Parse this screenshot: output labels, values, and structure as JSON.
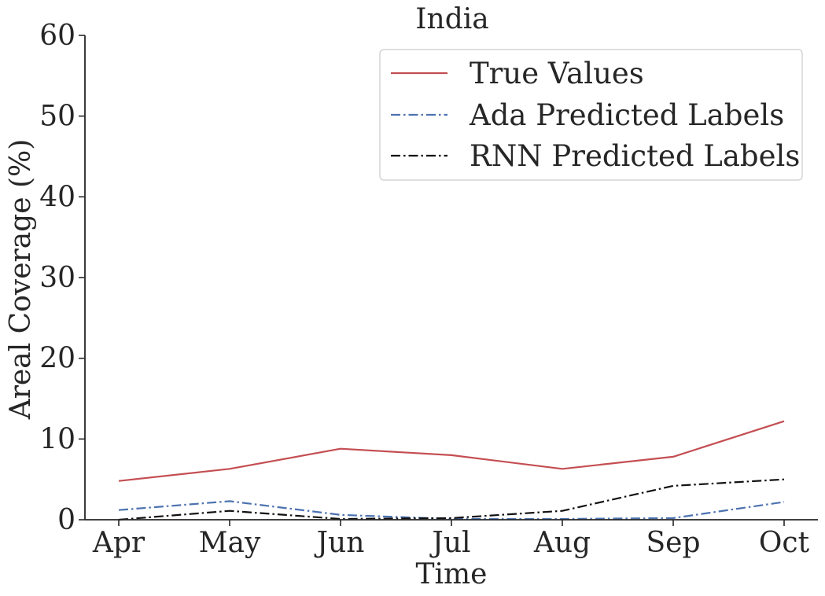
{
  "chart_data": {
    "type": "line",
    "title": "India",
    "xlabel": "Time",
    "ylabel": "Areal Coverage (%)",
    "categories": [
      "Apr",
      "May",
      "Jun",
      "Jul",
      "Aug",
      "Sep",
      "Oct"
    ],
    "ylim": [
      0,
      60
    ],
    "yticks": [
      0,
      10,
      20,
      30,
      40,
      50,
      60
    ],
    "grid": false,
    "legend_position": "top-right",
    "series": [
      {
        "name": "True Values",
        "color": "#c44e52",
        "style": "solid",
        "values": [
          4.8,
          6.3,
          8.8,
          8.0,
          6.3,
          7.8,
          12.2
        ]
      },
      {
        "name": "Ada Predicted Labels",
        "color": "#4c72b0",
        "style": "dashdot",
        "values": [
          1.2,
          2.3,
          0.6,
          0.1,
          0.1,
          0.2,
          2.2
        ]
      },
      {
        "name": "RNN Predicted Labels",
        "color": "#111111",
        "style": "dashdot",
        "values": [
          0.0,
          1.1,
          0.1,
          0.2,
          1.1,
          4.2,
          5.0
        ]
      }
    ]
  }
}
